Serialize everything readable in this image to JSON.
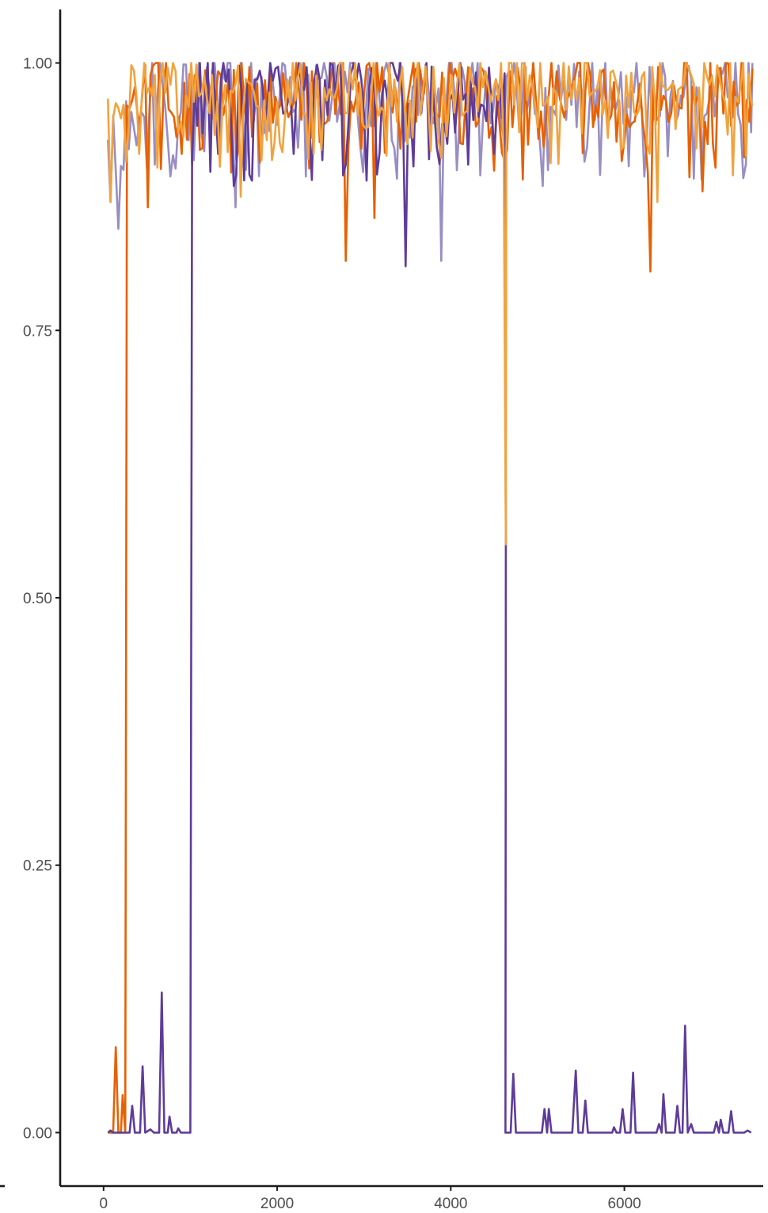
{
  "chart_data": {
    "type": "line",
    "title": "",
    "xlabel": "",
    "ylabel": "",
    "xlim": [
      -500,
      7600
    ],
    "ylim": [
      -0.05,
      1.05
    ],
    "grid": false,
    "legend": "none",
    "x_ticks": [
      0,
      2000,
      4000,
      6000
    ],
    "x_tick_labels": [
      "0",
      "2000",
      "4000",
      "6000"
    ],
    "y_ticks": [
      0,
      0.25,
      0.5,
      0.75,
      1.0
    ],
    "y_tick_labels": [
      "0.00",
      "0.25",
      "0.50",
      "0.75",
      "1.00"
    ],
    "x_start": 50,
    "x_step": 30,
    "series": [
      {
        "color": "#998ec3",
        "segments": [
          {
            "from": 50,
            "to": 7460,
            "base": 0.975,
            "amp": 0.035,
            "dips": [
              [
                80,
                0.87
              ],
              [
                160,
                0.845
              ],
              [
                230,
                0.9
              ],
              [
                600,
                0.905
              ],
              [
                1520,
                0.865
              ],
              [
                1650,
                0.9
              ],
              [
                2400,
                0.93
              ],
              [
                2950,
                0.92
              ],
              [
                3350,
                0.92
              ],
              [
                3900,
                0.815
              ],
              [
                4200,
                0.93
              ],
              [
                4600,
                0.93
              ],
              [
                5050,
                0.885
              ],
              [
                5450,
                0.94
              ],
              [
                6260,
                0.93
              ],
              [
                6600,
                0.945
              ],
              [
                7050,
                0.95
              ]
            ],
            "last": 1.0
          }
        ]
      },
      {
        "color": "#e66101",
        "segments": [
          {
            "from": 50,
            "to": 250,
            "base": 0.0,
            "amp": 0.0,
            "dips": [],
            "points": [
              [
                50,
                0.0
              ],
              [
                110,
                0.0
              ],
              [
                140,
                0.08
              ],
              [
                170,
                0.0
              ],
              [
                200,
                0.0
              ],
              [
                220,
                0.035
              ],
              [
                250,
                0.0
              ]
            ]
          },
          {
            "from": 270,
            "to": 7460,
            "base": 0.975,
            "amp": 0.035,
            "dips": [
              [
                520,
                0.865
              ],
              [
                900,
                0.915
              ],
              [
                1900,
                0.945
              ],
              [
                2790,
                0.815
              ],
              [
                3120,
                0.855
              ],
              [
                3420,
                0.92
              ],
              [
                4100,
                0.925
              ],
              [
                4430,
                0.93
              ],
              [
                5650,
                0.94
              ],
              [
                6050,
                0.94
              ],
              [
                6300,
                0.805
              ],
              [
                6900,
                0.88
              ],
              [
                7440,
                0.945
              ]
            ],
            "last": 0.995
          }
        ]
      },
      {
        "color": "#5e3c99",
        "segments": [
          {
            "from": 50,
            "to": 1000,
            "base": 0.0,
            "amp": 0.0,
            "dips": [],
            "points": [
              [
                50,
                0.0
              ],
              [
                80,
                0.002
              ],
              [
                110,
                0.0
              ],
              [
                300,
                0.0
              ],
              [
                330,
                0.025
              ],
              [
                360,
                0.0
              ],
              [
                420,
                0.0
              ],
              [
                450,
                0.062
              ],
              [
                480,
                0.0
              ],
              [
                540,
                0.003
              ],
              [
                580,
                0.0
              ],
              [
                640,
                0.0
              ],
              [
                670,
                0.131
              ],
              [
                700,
                0.0
              ],
              [
                740,
                0.0
              ],
              [
                760,
                0.015
              ],
              [
                790,
                0.0
              ],
              [
                840,
                0.0
              ],
              [
                860,
                0.004
              ],
              [
                890,
                0.0
              ],
              [
                1000,
                0.0
              ]
            ]
          },
          {
            "from": 1020,
            "to": 4620,
            "base": 0.975,
            "amp": 0.035,
            "dips": [
              [
                1020,
                0.91
              ],
              [
                1500,
                0.885
              ],
              [
                1700,
                0.89
              ],
              [
                2190,
                0.915
              ],
              [
                2800,
                0.905
              ],
              [
                3020,
                0.89
              ],
              [
                3480,
                0.81
              ],
              [
                3760,
                0.91
              ],
              [
                4200,
                0.905
              ],
              [
                4510,
                0.915
              ]
            ],
            "last": 0.55
          },
          {
            "from": 4630,
            "to": 7460,
            "base": 0.0,
            "amp": 0.0,
            "dips": [],
            "points": [
              [
                4630,
                0.0
              ],
              [
                4690,
                0.0
              ],
              [
                4720,
                0.055
              ],
              [
                4750,
                0.0
              ],
              [
                5050,
                0.0
              ],
              [
                5080,
                0.022
              ],
              [
                5110,
                0.0
              ],
              [
                5130,
                0.022
              ],
              [
                5160,
                0.0
              ],
              [
                5400,
                0.0
              ],
              [
                5440,
                0.058
              ],
              [
                5470,
                0.0
              ],
              [
                5520,
                0.0
              ],
              [
                5550,
                0.03
              ],
              [
                5580,
                0.0
              ],
              [
                5860,
                0.0
              ],
              [
                5880,
                0.005
              ],
              [
                5910,
                0.0
              ],
              [
                5950,
                0.0
              ],
              [
                5980,
                0.022
              ],
              [
                6010,
                0.0
              ],
              [
                6070,
                0.0
              ],
              [
                6100,
                0.056
              ],
              [
                6130,
                0.0
              ],
              [
                6370,
                0.0
              ],
              [
                6400,
                0.008
              ],
              [
                6430,
                0.0
              ],
              [
                6450,
                0.036
              ],
              [
                6480,
                0.0
              ],
              [
                6580,
                0.0
              ],
              [
                6610,
                0.025
              ],
              [
                6640,
                0.0
              ],
              [
                6670,
                0.0
              ],
              [
                6700,
                0.1
              ],
              [
                6730,
                0.0
              ],
              [
                6770,
                0.008
              ],
              [
                6800,
                0.0
              ],
              [
                7030,
                0.0
              ],
              [
                7060,
                0.01
              ],
              [
                7090,
                0.0
              ],
              [
                7110,
                0.012
              ],
              [
                7140,
                0.0
              ],
              [
                7200,
                0.0
              ],
              [
                7230,
                0.02
              ],
              [
                7260,
                0.0
              ],
              [
                7380,
                0.0
              ],
              [
                7420,
                0.002
              ],
              [
                7460,
                0.0
              ]
            ]
          }
        ]
      },
      {
        "color": "#f1a340",
        "segments": [
          {
            "from": 50,
            "to": 4620,
            "base": 0.978,
            "amp": 0.03,
            "dips": [
              [
                90,
                0.87
              ],
              [
                400,
                0.915
              ],
              [
                860,
                0.935
              ],
              [
                1590,
                0.875
              ],
              [
                2420,
                0.915
              ],
              [
                3390,
                0.945
              ],
              [
                4300,
                0.955
              ]
            ],
            "last": 0.55
          },
          {
            "from": 4640,
            "to": 7460,
            "base": 0.98,
            "amp": 0.025,
            "dips": [
              [
                5000,
                0.94
              ],
              [
                5800,
                0.93
              ],
              [
                6380,
                0.87
              ],
              [
                6880,
                0.94
              ],
              [
                7250,
                0.895
              ]
            ],
            "last": 0.96
          }
        ]
      }
    ]
  }
}
